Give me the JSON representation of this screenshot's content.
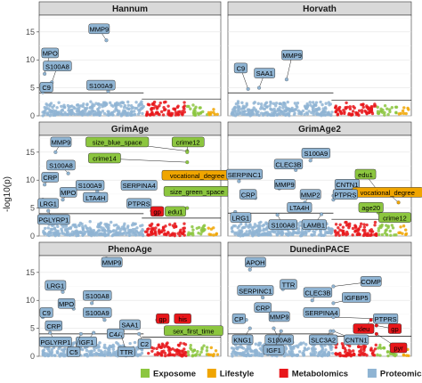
{
  "chart_data": {
    "type": "scatter",
    "ylabel": "-log10(p)",
    "ylim": [
      0,
      18
    ],
    "yticks": [
      "0",
      "5",
      "10",
      "15"
    ],
    "grid": true,
    "legend_position": "bottom",
    "categories": [
      {
        "name": "Exposome",
        "color": "#8cc63f"
      },
      {
        "name": "Lifestyle",
        "color": "#f0a500"
      },
      {
        "name": "Metabolomics",
        "color": "#e8161a"
      },
      {
        "name": "Proteomics",
        "color": "#8fb4d3"
      }
    ],
    "panels": [
      {
        "title": "Hannum",
        "thresholds": {
          "Proteomics": 4.1,
          "Metabolomics": 3.0
        },
        "points": [
          {
            "label": "MPO",
            "y": 7.5,
            "cat": "Proteomics"
          },
          {
            "label": "MMP9",
            "y": 13.5,
            "cat": "Proteomics"
          },
          {
            "label": "S100A8",
            "y": 6.0,
            "cat": "Proteomics"
          },
          {
            "label": "S100A9",
            "y": 4.4,
            "cat": "Proteomics"
          },
          {
            "label": "C9",
            "y": 4.2,
            "cat": "Proteomics"
          }
        ]
      },
      {
        "title": "Horvath",
        "thresholds": {
          "Proteomics": 4.1,
          "Metabolomics": 2.8
        },
        "points": [
          {
            "label": "MMP9",
            "y": 6.5,
            "cat": "Proteomics"
          },
          {
            "label": "C9",
            "y": 4.8,
            "cat": "Proteomics"
          },
          {
            "label": "SAA1",
            "y": 5.0,
            "cat": "Proteomics"
          }
        ]
      },
      {
        "title": "GrimAge",
        "thresholds": {
          "Proteomics": 4.0,
          "Metabolomics": 3.2
        },
        "points": [
          {
            "label": "MMP9",
            "y": 15.0,
            "cat": "Proteomics"
          },
          {
            "label": "size_blue_space",
            "y": 15.2,
            "cat": "Exposome"
          },
          {
            "label": "crime12",
            "y": 15.0,
            "cat": "Exposome"
          },
          {
            "label": "crime14",
            "y": 13.2,
            "cat": "Exposome"
          },
          {
            "label": "vocational_degree",
            "y": 10.5,
            "cat": "Lifestyle"
          },
          {
            "label": "S100A8",
            "y": 11.2,
            "cat": "Proteomics"
          },
          {
            "label": "CRP",
            "y": 9.2,
            "cat": "Proteomics"
          },
          {
            "label": "S100A9",
            "y": 8.0,
            "cat": "Proteomics"
          },
          {
            "label": "SERPINA4",
            "y": 9.0,
            "cat": "Proteomics"
          },
          {
            "label": "size_green_space",
            "y": 7.9,
            "cat": "Exposome"
          },
          {
            "label": "MPO",
            "y": 6.5,
            "cat": "Proteomics"
          },
          {
            "label": "LTA4H",
            "y": 6.8,
            "cat": "Proteomics"
          },
          {
            "label": "LRG1",
            "y": 6.5,
            "cat": "Proteomics"
          },
          {
            "label": "PTPRS",
            "y": 5.8,
            "cat": "Proteomics"
          },
          {
            "label": "gp",
            "y": 4.5,
            "cat": "Metabolomics"
          },
          {
            "label": "edu1",
            "y": 5.0,
            "cat": "Exposome"
          },
          {
            "label": "PGLYRP1",
            "y": 4.5,
            "cat": "Proteomics"
          }
        ]
      },
      {
        "title": "GrimAge2",
        "thresholds": {
          "Proteomics": 4.1,
          "Metabolomics": 3.0
        },
        "points": [
          {
            "label": "S100A9",
            "y": 13.5,
            "cat": "Proteomics"
          },
          {
            "label": "CLEC3B",
            "y": 11.8,
            "cat": "Proteomics"
          },
          {
            "label": "SERPINC1",
            "y": 9.8,
            "cat": "Proteomics"
          },
          {
            "label": "edu1",
            "y": 8.2,
            "cat": "Exposome"
          },
          {
            "label": "MMP9",
            "y": 8.5,
            "cat": "Proteomics"
          },
          {
            "label": "CNTN1",
            "y": 7.2,
            "cat": "Proteomics"
          },
          {
            "label": "vocational_degree",
            "y": 6.0,
            "cat": "Lifestyle"
          },
          {
            "label": "CRP",
            "y": 6.8,
            "cat": "Proteomics"
          },
          {
            "label": "MMP2",
            "y": 6.0,
            "cat": "Proteomics"
          },
          {
            "label": "PTPRS",
            "y": 6.5,
            "cat": "Proteomics"
          },
          {
            "label": "LTA4H",
            "y": 4.6,
            "cat": "Proteomics"
          },
          {
            "label": "age20",
            "y": 4.2,
            "cat": "Exposome"
          },
          {
            "label": "LRG1",
            "y": 4.3,
            "cat": "Proteomics"
          },
          {
            "label": "crime12",
            "y": 3.6,
            "cat": "Exposome"
          },
          {
            "label": "S100A8",
            "y": 3.8,
            "cat": "Proteomics"
          },
          {
            "label": "LAMB1",
            "y": 3.9,
            "cat": "Proteomics"
          }
        ]
      },
      {
        "title": "PhenoAge",
        "thresholds": {
          "Proteomics": 4.0,
          "Metabolomics": 3.4
        },
        "points": [
          {
            "label": "MMP9",
            "y": 17.5,
            "cat": "Proteomics"
          },
          {
            "label": "LRG1",
            "y": 11.5,
            "cat": "Proteomics"
          },
          {
            "label": "S100A8",
            "y": 9.5,
            "cat": "Proteomics"
          },
          {
            "label": "MPO",
            "y": 8.5,
            "cat": "Proteomics"
          },
          {
            "label": "C9",
            "y": 7.0,
            "cat": "Proteomics"
          },
          {
            "label": "S100A9",
            "y": 6.5,
            "cat": "Proteomics"
          },
          {
            "label": "CRP",
            "y": 5.5,
            "cat": "Proteomics"
          },
          {
            "label": "SAA1",
            "y": 5.0,
            "cat": "Proteomics"
          },
          {
            "label": "gp",
            "y": 6.5,
            "cat": "Metabolomics"
          },
          {
            "label": "his",
            "y": 6.5,
            "cat": "Metabolomics"
          },
          {
            "label": "sex_first_time",
            "y": 4.5,
            "cat": "Exposome"
          },
          {
            "label": "C4A",
            "y": 4.5,
            "cat": "Proteomics"
          },
          {
            "label": "PGLYRP1",
            "y": 4.2,
            "cat": "Proteomics"
          },
          {
            "label": "IGF1",
            "y": 4.2,
            "cat": "Proteomics"
          },
          {
            "label": "C2",
            "y": 4.0,
            "cat": "Proteomics"
          },
          {
            "label": "C5",
            "y": 4.0,
            "cat": "Proteomics"
          },
          {
            "label": "TTR",
            "y": 4.0,
            "cat": "Proteomics"
          }
        ]
      },
      {
        "title": "DunedinPACE",
        "thresholds": {
          "Proteomics": 4.0,
          "Metabolomics": 3.6
        },
        "points": [
          {
            "label": "APOH",
            "y": 15.5,
            "cat": "Proteomics"
          },
          {
            "label": "COMP",
            "y": 12.5,
            "cat": "Proteomics"
          },
          {
            "label": "TTR",
            "y": 12.0,
            "cat": "Proteomics"
          },
          {
            "label": "SERPINC1",
            "y": 10.5,
            "cat": "Proteomics"
          },
          {
            "label": "CLEC3B",
            "y": 10.0,
            "cat": "Proteomics"
          },
          {
            "label": "IGFBP5",
            "y": 9.5,
            "cat": "Proteomics"
          },
          {
            "label": "CRP",
            "y": 9.0,
            "cat": "Proteomics"
          },
          {
            "label": "SERPINA4",
            "y": 8.0,
            "cat": "Proteomics"
          },
          {
            "label": "PTPRS",
            "y": 7.0,
            "cat": "Proteomics"
          },
          {
            "label": "CP",
            "y": 6.5,
            "cat": "Proteomics"
          },
          {
            "label": "MMP9",
            "y": 6.5,
            "cat": "Proteomics"
          },
          {
            "label": "xleu",
            "y": 6.5,
            "cat": "Metabolomics"
          },
          {
            "label": "gp",
            "y": 5.5,
            "cat": "Metabolomics"
          },
          {
            "label": "KNG1",
            "y": 5.0,
            "cat": "Proteomics"
          },
          {
            "label": "S100A8",
            "y": 5.0,
            "cat": "Proteomics"
          },
          {
            "label": "SLC3A2",
            "y": 4.5,
            "cat": "Proteomics"
          },
          {
            "label": "CNTN1",
            "y": 4.5,
            "cat": "Proteomics"
          },
          {
            "label": "IGF1",
            "y": 4.5,
            "cat": "Proteomics"
          },
          {
            "label": "pyr",
            "y": 4.0,
            "cat": "Metabolomics"
          }
        ]
      }
    ]
  }
}
